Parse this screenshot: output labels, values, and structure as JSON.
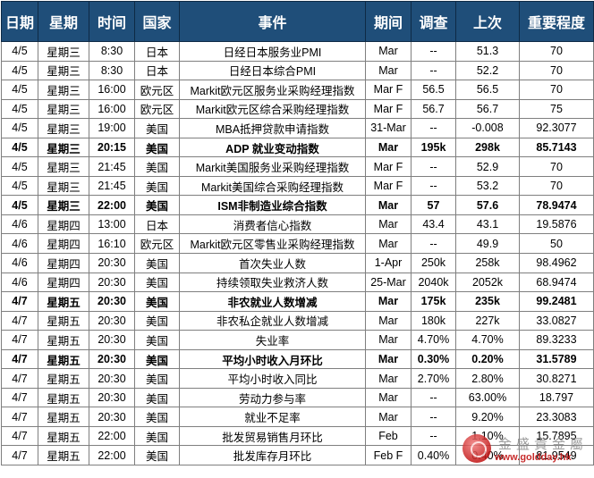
{
  "headers": [
    "日期",
    "星期",
    "时间",
    "国家",
    "事件",
    "期间",
    "调查",
    "上次",
    "重要程度"
  ],
  "rows": [
    {
      "cells": [
        "4/5",
        "星期三",
        "8:30",
        "日本",
        "日经日本服务业PMI",
        "Mar",
        "--",
        "51.3",
        "70"
      ],
      "bold": false
    },
    {
      "cells": [
        "4/5",
        "星期三",
        "8:30",
        "日本",
        "日经日本综合PMI",
        "Mar",
        "--",
        "52.2",
        "70"
      ],
      "bold": false
    },
    {
      "cells": [
        "4/5",
        "星期三",
        "16:00",
        "欧元区",
        "Markit欧元区服务业采购经理指数",
        "Mar F",
        "56.5",
        "56.5",
        "70"
      ],
      "bold": false
    },
    {
      "cells": [
        "4/5",
        "星期三",
        "16:00",
        "欧元区",
        "Markit欧元区综合采购经理指数",
        "Mar F",
        "56.7",
        "56.7",
        "75"
      ],
      "bold": false
    },
    {
      "cells": [
        "4/5",
        "星期三",
        "19:00",
        "美国",
        "MBA抵押贷款申请指数",
        "31-Mar",
        "--",
        "-0.008",
        "92.3077"
      ],
      "bold": false
    },
    {
      "cells": [
        "4/5",
        "星期三",
        "20:15",
        "美国",
        "ADP 就业变动指数",
        "Mar",
        "195k",
        "298k",
        "85.7143"
      ],
      "bold": true
    },
    {
      "cells": [
        "4/5",
        "星期三",
        "21:45",
        "美国",
        "Markit美国服务业采购经理指数",
        "Mar F",
        "--",
        "52.9",
        "70"
      ],
      "bold": false
    },
    {
      "cells": [
        "4/5",
        "星期三",
        "21:45",
        "美国",
        "Markit美国综合采购经理指数",
        "Mar F",
        "--",
        "53.2",
        "70"
      ],
      "bold": false
    },
    {
      "cells": [
        "4/5",
        "星期三",
        "22:00",
        "美国",
        "ISM非制造业综合指数",
        "Mar",
        "57",
        "57.6",
        "78.9474"
      ],
      "bold": true
    },
    {
      "cells": [
        "4/6",
        "星期四",
        "13:00",
        "日本",
        "消费者信心指数",
        "Mar",
        "43.4",
        "43.1",
        "19.5876"
      ],
      "bold": false
    },
    {
      "cells": [
        "4/6",
        "星期四",
        "16:10",
        "欧元区",
        "Markit欧元区零售业采购经理指数",
        "Mar",
        "--",
        "49.9",
        "50"
      ],
      "bold": false
    },
    {
      "cells": [
        "4/6",
        "星期四",
        "20:30",
        "美国",
        "首次失业人数",
        "1-Apr",
        "250k",
        "258k",
        "98.4962"
      ],
      "bold": false
    },
    {
      "cells": [
        "4/6",
        "星期四",
        "20:30",
        "美国",
        "持续领取失业救济人数",
        "25-Mar",
        "2040k",
        "2052k",
        "68.9474"
      ],
      "bold": false
    },
    {
      "cells": [
        "4/7",
        "星期五",
        "20:30",
        "美国",
        "非农就业人数增减",
        "Mar",
        "175k",
        "235k",
        "99.2481"
      ],
      "bold": true
    },
    {
      "cells": [
        "4/7",
        "星期五",
        "20:30",
        "美国",
        "非农私企就业人数增减",
        "Mar",
        "180k",
        "227k",
        "33.0827"
      ],
      "bold": false
    },
    {
      "cells": [
        "4/7",
        "星期五",
        "20:30",
        "美国",
        "失业率",
        "Mar",
        "4.70%",
        "4.70%",
        "89.3233"
      ],
      "bold": false
    },
    {
      "cells": [
        "4/7",
        "星期五",
        "20:30",
        "美国",
        "平均小时收入月环比",
        "Mar",
        "0.30%",
        "0.20%",
        "31.5789"
      ],
      "bold": true
    },
    {
      "cells": [
        "4/7",
        "星期五",
        "20:30",
        "美国",
        "平均小时收入同比",
        "Mar",
        "2.70%",
        "2.80%",
        "30.8271"
      ],
      "bold": false
    },
    {
      "cells": [
        "4/7",
        "星期五",
        "20:30",
        "美国",
        "劳动力参与率",
        "Mar",
        "--",
        "63.00%",
        "18.797"
      ],
      "bold": false
    },
    {
      "cells": [
        "4/7",
        "星期五",
        "20:30",
        "美国",
        "就业不足率",
        "Mar",
        "--",
        "9.20%",
        "23.3083"
      ],
      "bold": false
    },
    {
      "cells": [
        "4/7",
        "星期五",
        "22:00",
        "美国",
        "批发贸易销售月环比",
        "Feb",
        "--",
        "1.10%",
        "15.7895"
      ],
      "bold": false
    },
    {
      "cells": [
        "4/7",
        "星期五",
        "22:00",
        "美国",
        "批发库存月环比",
        "Feb F",
        "0.40%",
        "0.40%",
        "81.9549"
      ],
      "bold": false
    }
  ],
  "watermark": {
    "text": "金盛貴金屬",
    "url": "www.goldday.hk"
  }
}
